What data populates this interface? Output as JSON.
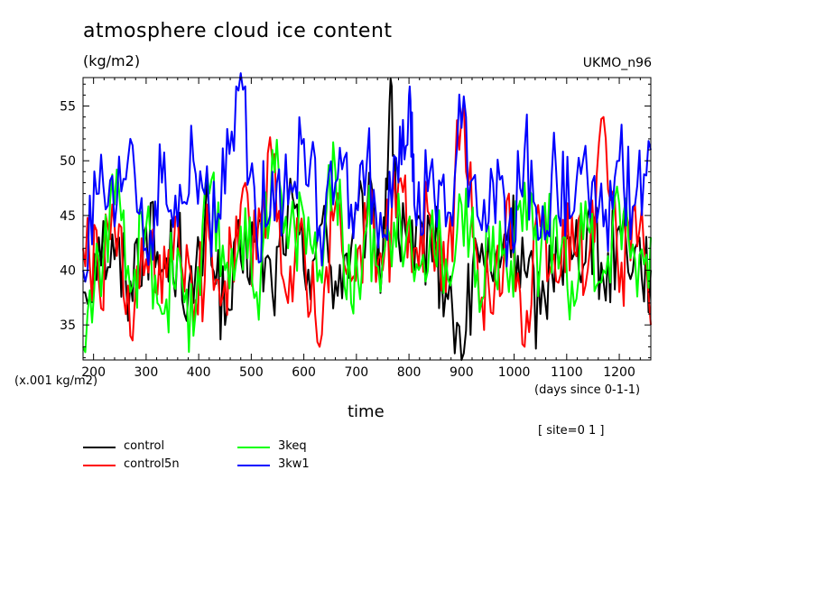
{
  "title": "atmosphere cloud ice content",
  "units": "(kg/m2)",
  "model": "UKMO_n96",
  "y_scale_label": "(x.001 kg/m2)",
  "x_units_label": "(days since 0-1-1)",
  "x_axis_title": "time",
  "site_label": "[ site=0 1 ]",
  "chart_data": {
    "type": "line",
    "title": "atmosphere cloud ice content",
    "xlabel": "time",
    "ylabel": "(kg/m2)",
    "xlim": [
      180,
      1260
    ],
    "ylim": [
      31.8,
      57.6
    ],
    "x_ticks": [
      200,
      300,
      400,
      500,
      600,
      700,
      800,
      900,
      1000,
      1100,
      1200
    ],
    "y_ticks": [
      35,
      40,
      45,
      50,
      55
    ],
    "x_tick_labels": [
      "200",
      "300",
      "400",
      "500",
      "600",
      "700",
      "800",
      "900",
      "1000",
      "1100",
      "1200"
    ],
    "y_tick_labels": [
      "35",
      "40",
      "45",
      "50",
      "55"
    ],
    "legend_position": "bottom-left, below plot",
    "grid": false,
    "series": [
      {
        "name": "control",
        "color": "#000000",
        "x": [
          180,
          210,
          240,
          270,
          300,
          330,
          360,
          390,
          420,
          450,
          480,
          510,
          540,
          570,
          600,
          630,
          660,
          690,
          720,
          750,
          765,
          780,
          810,
          840,
          870,
          900,
          930,
          960,
          990,
          1020,
          1050,
          1080,
          1110,
          1140,
          1170,
          1200,
          1230,
          1260
        ],
        "y": [
          38,
          43,
          41,
          39,
          44,
          40,
          42,
          37,
          45,
          35,
          41,
          43,
          38,
          46,
          40,
          44,
          39,
          42,
          45,
          41,
          57.5,
          43,
          40,
          44,
          38,
          31.8,
          42,
          39,
          44,
          40,
          36,
          43,
          41,
          45,
          39,
          44,
          42,
          40
        ]
      },
      {
        "name": "control5n",
        "color": "#ff0000",
        "x": [
          180,
          210,
          240,
          270,
          300,
          330,
          360,
          390,
          420,
          450,
          480,
          510,
          540,
          570,
          600,
          630,
          660,
          690,
          720,
          750,
          780,
          810,
          840,
          870,
          900,
          930,
          960,
          990,
          1020,
          1050,
          1080,
          1110,
          1140,
          1170,
          1200,
          1230,
          1260
        ],
        "y": [
          42,
          39,
          44,
          34,
          41,
          37,
          45,
          35,
          43,
          39,
          46,
          41,
          50,
          37,
          43,
          33,
          46,
          39,
          44,
          40,
          48,
          42,
          45,
          38,
          54,
          41,
          36,
          47,
          33,
          44,
          39,
          45,
          40,
          54,
          38,
          46,
          35
        ]
      },
      {
        "name": "3keq",
        "color": "#00ff00",
        "x": [
          180,
          210,
          240,
          270,
          300,
          330,
          360,
          390,
          420,
          450,
          480,
          510,
          540,
          570,
          600,
          630,
          660,
          690,
          720,
          750,
          780,
          810,
          840,
          870,
          900,
          930,
          960,
          990,
          1020,
          1050,
          1080,
          1110,
          1140,
          1170,
          1200,
          1230,
          1260
        ],
        "y": [
          33,
          41,
          46,
          38,
          44,
          36,
          42,
          34,
          47,
          40,
          44,
          38,
          51,
          42,
          45,
          40,
          49,
          37,
          44,
          41,
          47,
          39,
          43,
          41,
          46,
          40,
          44,
          38,
          48,
          41,
          45,
          39,
          44,
          40,
          46,
          41,
          43
        ]
      },
      {
        "name": "3kw1",
        "color": "#0000ff",
        "x": [
          180,
          210,
          240,
          270,
          300,
          330,
          360,
          390,
          420,
          450,
          480,
          510,
          540,
          570,
          600,
          630,
          660,
          690,
          720,
          750,
          780,
          800,
          810,
          840,
          870,
          900,
          930,
          960,
          990,
          1020,
          1050,
          1080,
          1110,
          1140,
          1170,
          1200,
          1230,
          1260
        ],
        "y": [
          40,
          47,
          44,
          52,
          42,
          48,
          44,
          50,
          45,
          47,
          58,
          43,
          49,
          46,
          52,
          44,
          48,
          46,
          50,
          43,
          48,
          56,
          46,
          49,
          44,
          53,
          45,
          48,
          44,
          51,
          43,
          49,
          45,
          48,
          44,
          50,
          46,
          51
        ]
      }
    ]
  }
}
